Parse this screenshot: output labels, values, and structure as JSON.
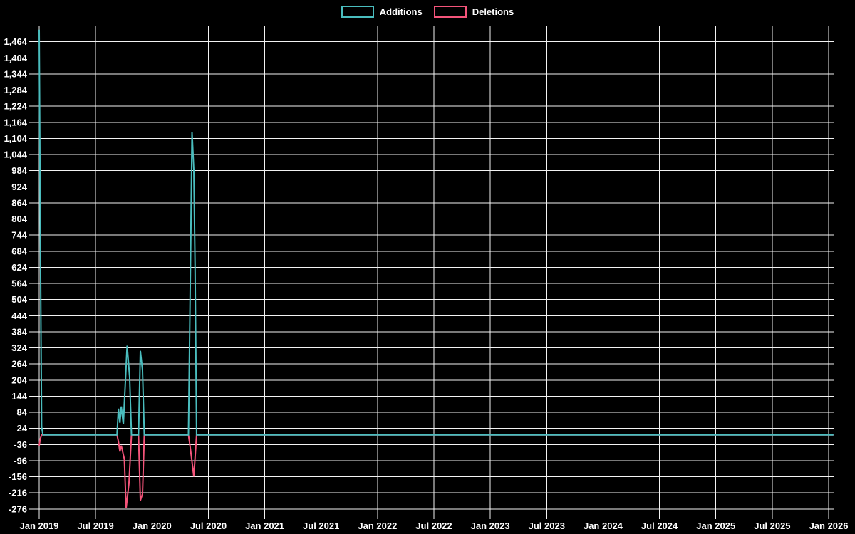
{
  "legend": {
    "items": [
      {
        "label": "Additions",
        "color": "#4abdbe"
      },
      {
        "label": "Deletions",
        "color": "#f4547a"
      }
    ]
  },
  "colors": {
    "background": "#000000",
    "grid": "#f2f2f2",
    "text": "#ffffff",
    "additions": "#4abdbe",
    "deletions": "#f4547a"
  },
  "chart_data": {
    "type": "line",
    "grid": true,
    "legend_position": "top-center",
    "x_axis": {
      "tick_labels": [
        "Jan 2019",
        "Jul 2019",
        "Jan 2020",
        "Jul 2020",
        "Jan 2021",
        "Jul 2021",
        "Jan 2022",
        "Jul 2022",
        "Jan 2023",
        "Jul 2023",
        "Jan 2024",
        "Jul 2024",
        "Jan 2025",
        "Jul 2025",
        "Jan 2026"
      ],
      "tick_years": [
        2019,
        2019.5,
        2020,
        2020.5,
        2021,
        2021.5,
        2022,
        2022.5,
        2023,
        2023.5,
        2024,
        2024.5,
        2025,
        2025.5,
        2026
      ]
    },
    "y_axis": {
      "tick_values": [
        1464,
        1404,
        1344,
        1284,
        1224,
        1164,
        1104,
        1044,
        984,
        924,
        864,
        804,
        744,
        684,
        624,
        564,
        504,
        444,
        384,
        324,
        264,
        204,
        144,
        84,
        24,
        -36,
        -96,
        -156,
        -216,
        -276
      ]
    },
    "ylim": [
      -295,
      1524
    ],
    "xlim_years": [
      2018.956,
      2026.044
    ],
    "series": [
      {
        "name": "Additions",
        "color": "#4abdbe",
        "points": [
          [
            2019.0,
            1509
          ],
          [
            2019.01,
            790
          ],
          [
            2019.022,
            30
          ],
          [
            2019.034,
            0
          ],
          [
            2019.69,
            0
          ],
          [
            2019.703,
            98
          ],
          [
            2019.716,
            45
          ],
          [
            2019.728,
            106
          ],
          [
            2019.746,
            40
          ],
          [
            2019.78,
            332
          ],
          [
            2019.802,
            217
          ],
          [
            2019.818,
            0
          ],
          [
            2019.881,
            0
          ],
          [
            2019.897,
            313
          ],
          [
            2019.916,
            240
          ],
          [
            2019.932,
            0
          ],
          [
            2020.324,
            0
          ],
          [
            2020.339,
            530
          ],
          [
            2020.355,
            1127
          ],
          [
            2020.371,
            985
          ],
          [
            2020.382,
            640
          ],
          [
            2020.396,
            0
          ],
          [
            2026.043,
            0
          ]
        ]
      },
      {
        "name": "Deletions",
        "color": "#f4547a",
        "points": [
          [
            2019.0,
            -40
          ],
          [
            2019.01,
            -15
          ],
          [
            2019.022,
            0
          ],
          [
            2019.69,
            0
          ],
          [
            2019.703,
            -25
          ],
          [
            2019.716,
            -62
          ],
          [
            2019.728,
            -40
          ],
          [
            2019.755,
            -90
          ],
          [
            2019.771,
            -273
          ],
          [
            2019.796,
            -180
          ],
          [
            2019.818,
            0
          ],
          [
            2019.881,
            0
          ],
          [
            2019.897,
            -244
          ],
          [
            2019.916,
            -220
          ],
          [
            2019.932,
            0
          ],
          [
            2020.324,
            0
          ],
          [
            2020.339,
            -45
          ],
          [
            2020.355,
            -100
          ],
          [
            2020.371,
            -155
          ],
          [
            2020.396,
            0
          ],
          [
            2026.043,
            0
          ]
        ]
      }
    ]
  }
}
